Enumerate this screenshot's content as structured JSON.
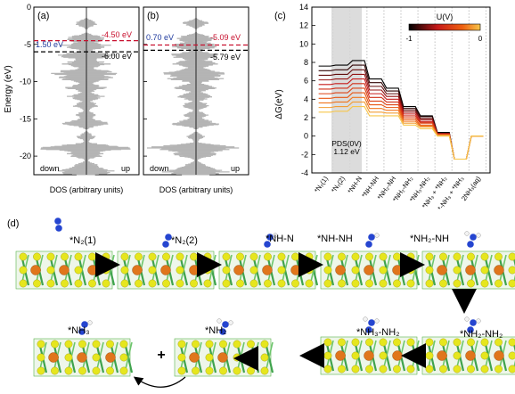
{
  "panel_labels": [
    "(a)",
    "(b)",
    "(c)",
    "(d)"
  ],
  "dos_panels": [
    {
      "label": "(a)",
      "ylabel": "Energy (eV)",
      "xlabel": "DOS (arbitrary units)",
      "yticks": [
        "0",
        "-5",
        "-10",
        "-15",
        "-20"
      ],
      "ylim": [
        -22.5,
        0
      ],
      "down_label": "down",
      "up_label": "up",
      "red_line_value": -4.5,
      "red_line_label": "-4.50 eV",
      "black_line_value": -6.0,
      "black_line_label": "-6.00 eV",
      "gap_label": "1.50 eV"
    },
    {
      "label": "(b)",
      "xlabel": "DOS (arbitrary units)",
      "ylim": [
        -22.5,
        0
      ],
      "down_label": "down",
      "up_label": "up",
      "red_line_value": -5.09,
      "red_line_label": "-5.09 eV",
      "black_line_value": -5.79,
      "black_line_label": "-5.79 eV",
      "gap_label": "0.70 eV"
    }
  ],
  "chart_data": {
    "type": "line",
    "ylabel": "ΔG(eV)",
    "ylim": [
      -4,
      14
    ],
    "yticks": [
      "-4",
      "-2",
      "0",
      "2",
      "4",
      "6",
      "8",
      "10",
      "12",
      "14"
    ],
    "categories": [
      "*N₂(1)",
      "*N₂(2)",
      "*NH-N",
      "*NH-NH",
      "*NH₂-NH",
      "*NH₂-NH₂",
      "*NH₃-NH₂",
      "*NH₃ + *NH₂",
      "*-NH₃ + *NH₃",
      "2NH₃(aq)"
    ],
    "pds_label": "PDS(0V)",
    "pds_value_label": "1.12 eV",
    "colorbar_title": "U(V)",
    "colorbar_min_label": "-1",
    "colorbar_max_label": "0",
    "colorbar_colors": [
      "#000000",
      "#c61a1a",
      "#ee6011",
      "#f7c64a"
    ],
    "series": [
      {
        "U": -1.0,
        "values": [
          7.6,
          7.7,
          8.2,
          6.2,
          5.2,
          3.2,
          2.2,
          0.4,
          -2.5,
          0.0
        ]
      },
      {
        "U": -0.9,
        "values": [
          7.1,
          7.2,
          7.7,
          5.8,
          4.9,
          3.0,
          2.1,
          0.3,
          -2.5,
          0.0
        ]
      },
      {
        "U": -0.8,
        "values": [
          6.6,
          6.7,
          7.2,
          5.4,
          4.6,
          2.8,
          1.9,
          0.3,
          -2.5,
          0.0
        ]
      },
      {
        "U": -0.7,
        "values": [
          6.1,
          6.2,
          6.7,
          5.0,
          4.3,
          2.6,
          1.8,
          0.3,
          -2.5,
          0.0
        ]
      },
      {
        "U": -0.6,
        "values": [
          5.6,
          5.7,
          6.2,
          4.6,
          4.0,
          2.4,
          1.6,
          0.2,
          -2.5,
          0.0
        ]
      },
      {
        "U": -0.5,
        "values": [
          5.1,
          5.2,
          5.7,
          4.2,
          3.7,
          2.2,
          1.5,
          0.2,
          -2.5,
          0.0
        ]
      },
      {
        "U": -0.4,
        "values": [
          4.6,
          4.7,
          5.2,
          3.8,
          3.4,
          2.0,
          1.4,
          0.2,
          -2.5,
          0.0
        ]
      },
      {
        "U": -0.3,
        "values": [
          4.1,
          4.2,
          4.7,
          3.4,
          3.1,
          1.8,
          1.2,
          0.1,
          -2.5,
          0.0
        ]
      },
      {
        "U": -0.2,
        "values": [
          3.6,
          3.7,
          4.2,
          3.0,
          2.8,
          1.6,
          1.1,
          0.1,
          -2.5,
          0.0
        ]
      },
      {
        "U": -0.1,
        "values": [
          3.1,
          3.2,
          3.7,
          2.6,
          2.5,
          1.4,
          1.0,
          0.1,
          -2.5,
          0.0
        ]
      },
      {
        "U": 0.0,
        "values": [
          2.6,
          2.7,
          3.2,
          2.2,
          2.2,
          1.2,
          0.8,
          0.0,
          -2.5,
          0.0
        ]
      }
    ]
  },
  "mechanism": {
    "row1": [
      "*N₂(1)",
      "*N₂(2)",
      "*NH-N",
      "*NH-NH",
      "*NH₂-NH"
    ],
    "row2": [
      "*NH₃",
      "*NH₂",
      "*NH₃-NH₂",
      "*NH₂-NH₂"
    ],
    "plus_sign": "+"
  }
}
